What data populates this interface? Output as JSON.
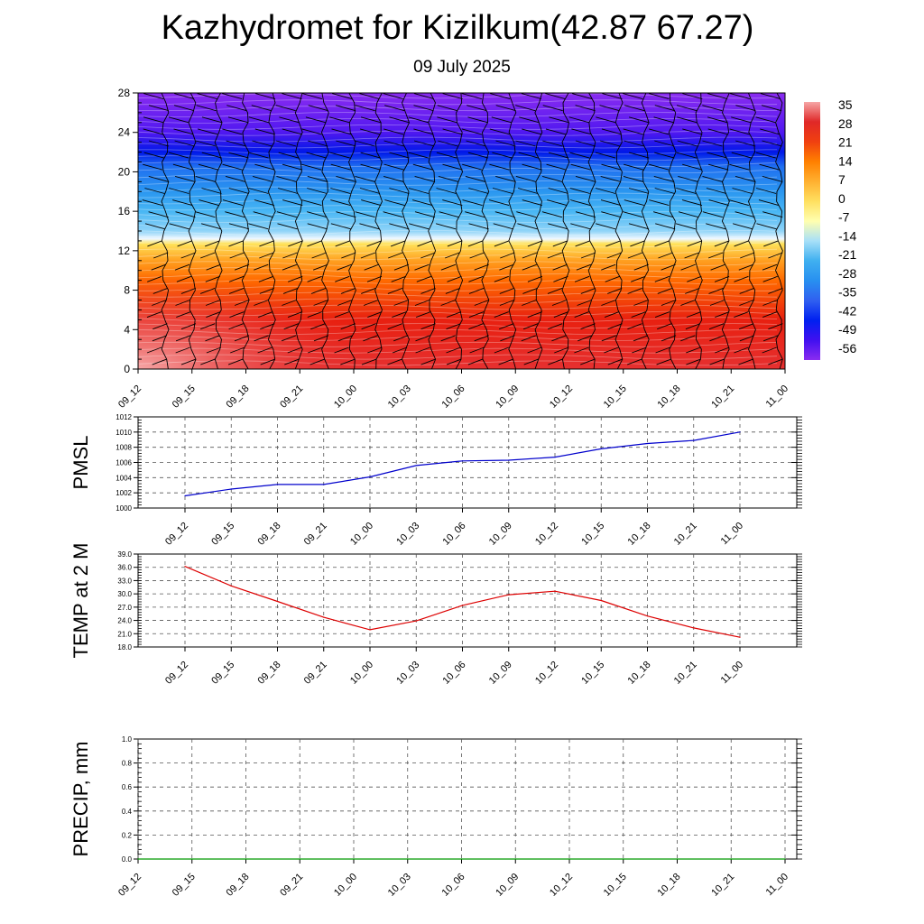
{
  "title": "Kazhydromet for Kizilkum(42.87 67.27)",
  "subtitle": "09 July 2025",
  "chart_data": [
    {
      "type": "heatmap",
      "name": "cross-section",
      "x_ticks": [
        "09_12",
        "09_15",
        "09_18",
        "09_21",
        "10_00",
        "10_03",
        "10_06",
        "10_09",
        "10_12",
        "10_15",
        "10_18",
        "10_21",
        "11_00"
      ],
      "y_ticks": [
        0,
        4,
        8,
        12,
        16,
        20,
        24,
        28
      ],
      "ylim": [
        0,
        28
      ],
      "colorbar_labels": [
        "35",
        "28",
        "21",
        "14",
        "7",
        "0",
        "-7",
        "-14",
        "-21",
        "-28",
        "-35",
        "-42",
        "-49",
        "-56"
      ],
      "colorbar_colors": [
        "#f6a6a6",
        "#e02828",
        "#f04010",
        "#ff8000",
        "#ffb030",
        "#ffe060",
        "#ffffb0",
        "#a8e0f8",
        "#40b0f0",
        "#2890f0",
        "#3060f0",
        "#0020f0",
        "#4010f0",
        "#8a2cf0"
      ],
      "level_bands": [
        {
          "z": 0,
          "color": "#e63030"
        },
        {
          "z": 5,
          "color": "#e82010"
        },
        {
          "z": 9,
          "color": "#ff6a00"
        },
        {
          "z": 11,
          "color": "#ffa020"
        },
        {
          "z": 12.7,
          "color": "#ffe25a"
        },
        {
          "z": 13.2,
          "color": "#f0f8ff"
        },
        {
          "z": 14,
          "color": "#90d4f8"
        },
        {
          "z": 16,
          "color": "#48b6f4"
        },
        {
          "z": 18,
          "color": "#2a96f0"
        },
        {
          "z": 20.5,
          "color": "#2070f0"
        },
        {
          "z": 22,
          "color": "#0018e8"
        },
        {
          "z": 24,
          "color": "#5018f0"
        },
        {
          "z": 28,
          "color": "#8a2cf0"
        }
      ]
    },
    {
      "type": "line",
      "ylabel": "PMSL",
      "ylim": [
        1000,
        1012
      ],
      "y_ticks": [
        1000,
        1002,
        1004,
        1006,
        1008,
        1010,
        1012
      ],
      "x_ticks": [
        "09_12",
        "09_15",
        "09_18",
        "09_21",
        "10_00",
        "10_03",
        "10_06",
        "10_09",
        "10_12",
        "10_15",
        "10_18",
        "10_21",
        "11_00"
      ],
      "series": [
        {
          "values": [
            1001.6,
            1002.5,
            1003.1,
            1003.1,
            1004.1,
            1005.6,
            1006.2,
            1006.3,
            1006.7,
            1007.8,
            1008.5,
            1008.9,
            1010.0
          ],
          "color": "#0000cc"
        }
      ]
    },
    {
      "type": "line",
      "ylabel": "TEMP at 2 M",
      "ylim": [
        18,
        39
      ],
      "y_ticks": [
        "18.0",
        "21.0",
        "24.0",
        "27.0",
        "30.0",
        "33.0",
        "36.0",
        "39.0"
      ],
      "x_ticks": [
        "09_12",
        "09_15",
        "09_18",
        "09_21",
        "10_00",
        "10_03",
        "10_06",
        "10_09",
        "10_12",
        "10_15",
        "10_18",
        "10_21",
        "11_00"
      ],
      "series": [
        {
          "values": [
            36.2,
            31.8,
            28.3,
            24.7,
            21.9,
            23.9,
            27.4,
            29.8,
            30.6,
            28.5,
            25.0,
            22.3,
            20.2
          ],
          "color": "#dd0000"
        }
      ]
    },
    {
      "type": "line",
      "ylabel": "PRECIP, mm",
      "ylim": [
        0,
        1
      ],
      "y_ticks": [
        "0.0",
        "0.2",
        "0.4",
        "0.6",
        "0.8",
        "1.0"
      ],
      "x_ticks": [
        "09_12",
        "09_15",
        "09_18",
        "09_21",
        "10_00",
        "10_03",
        "10_06",
        "10_09",
        "10_12",
        "10_15",
        "10_18",
        "10_21",
        "11_00"
      ],
      "series": [
        {
          "values": [
            0,
            0,
            0,
            0,
            0,
            0,
            0,
            0,
            0,
            0,
            0,
            0,
            0
          ],
          "color": "#009900"
        }
      ]
    }
  ]
}
